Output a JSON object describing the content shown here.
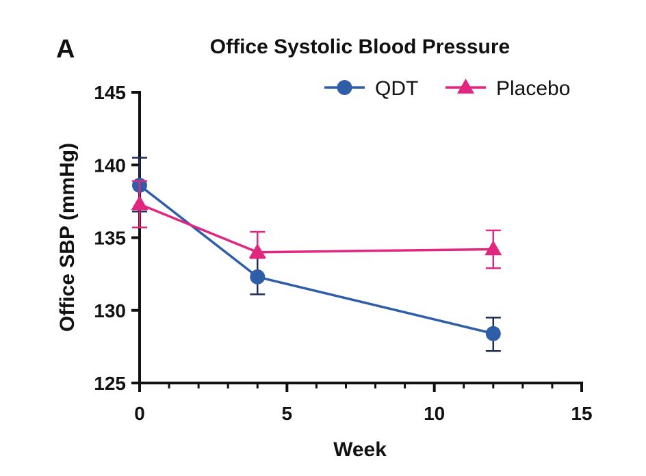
{
  "panel_label": "A",
  "chart_data": {
    "type": "line",
    "title": "Office Systolic Blood Pressure",
    "xlabel": "Week",
    "ylabel": "Office SBP (mmHg)",
    "xlim": [
      0,
      15
    ],
    "ylim": [
      125,
      145
    ],
    "xticks": [
      0,
      5,
      10,
      15
    ],
    "yticks": [
      125,
      130,
      135,
      140,
      145
    ],
    "x_minor_step": 1,
    "grid": false,
    "legend_position": "top-right",
    "series": [
      {
        "name": "QDT",
        "color": "#2f5ea8",
        "marker": "circle",
        "x": [
          0,
          4,
          12
        ],
        "y": [
          138.6,
          132.3,
          128.4
        ],
        "err_low": [
          136.8,
          131.1,
          127.2
        ],
        "err_high": [
          140.5,
          133.6,
          129.5
        ]
      },
      {
        "name": "Placebo",
        "color": "#e0267f",
        "marker": "triangle",
        "x": [
          0,
          4,
          12
        ],
        "y": [
          137.3,
          134.0,
          134.2
        ],
        "err_low": [
          135.7,
          133.6,
          132.9
        ],
        "err_high": [
          138.9,
          135.4,
          135.5
        ]
      }
    ]
  }
}
